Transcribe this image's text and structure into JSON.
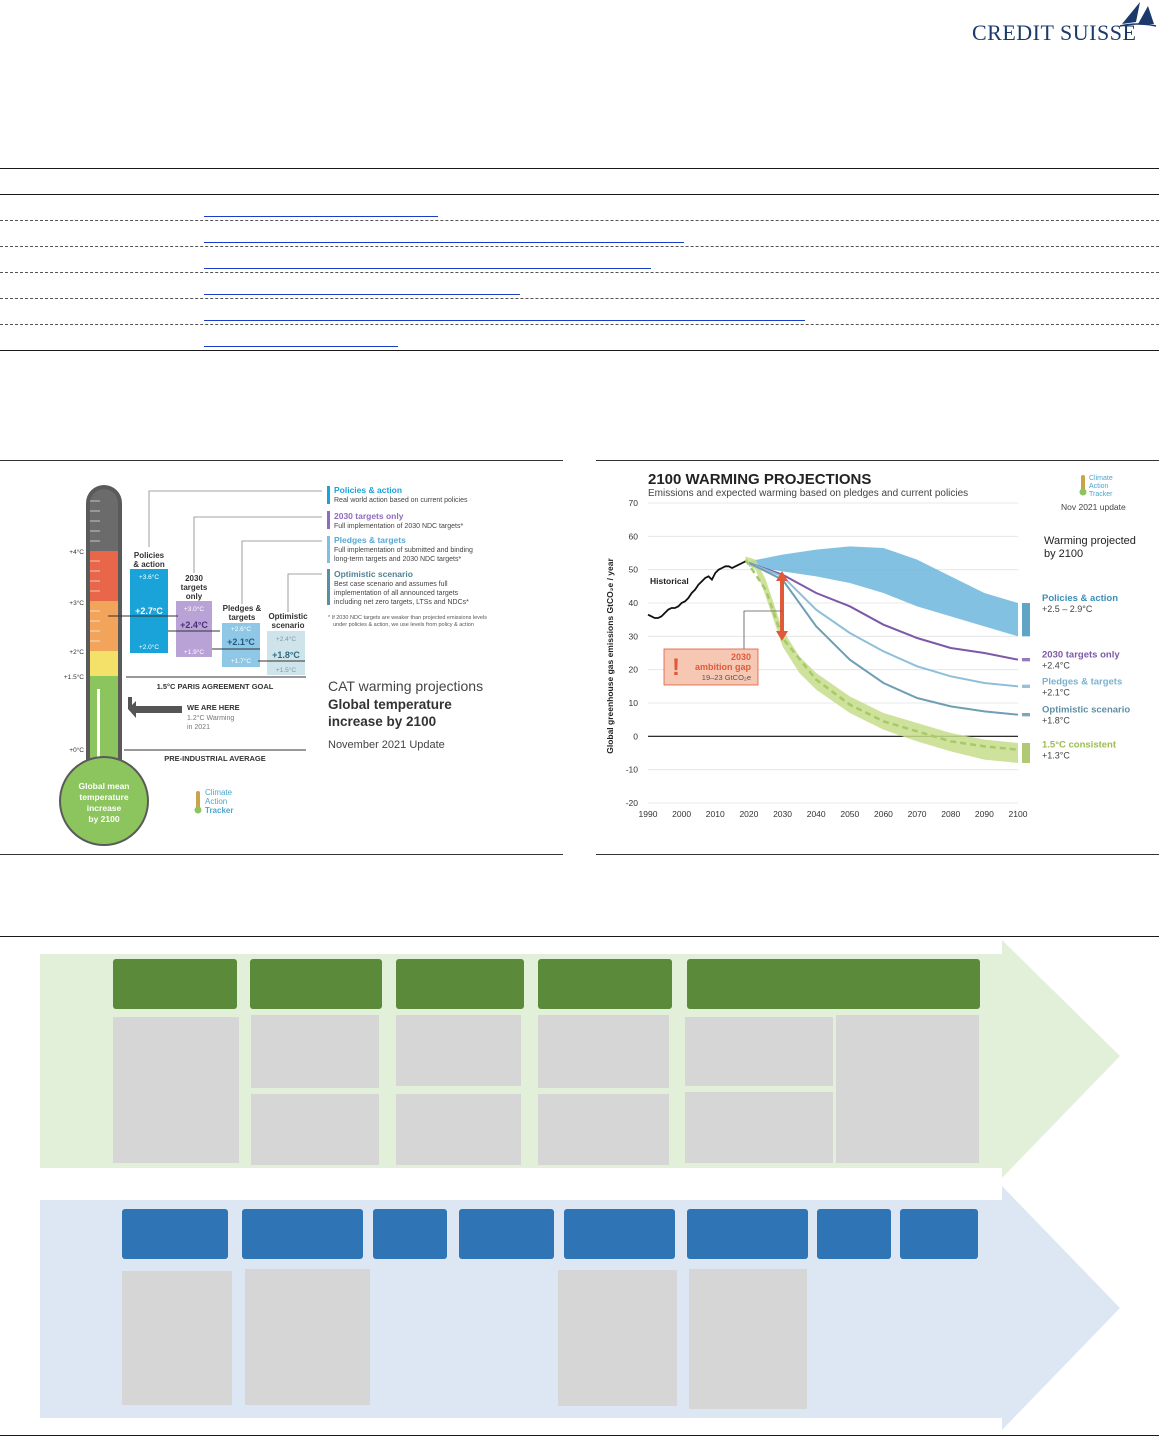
{
  "brand": {
    "name": "CREDIT SUISSE"
  },
  "thermometer": {
    "scale_labels": [
      "+4°C",
      "+3°C",
      "+2°C",
      "+1.5°C",
      "+0°C"
    ],
    "bulb_lines": [
      "Global mean",
      "temperature",
      "increase",
      "by 2100"
    ],
    "columns": [
      {
        "name_lines": [
          "Policies",
          "& action"
        ],
        "top": "+3.6°C",
        "mid": "+2.7°C",
        "bottom": "+2.0°C",
        "color": "#1aa3d9"
      },
      {
        "name_lines": [
          "2030",
          "targets",
          "only"
        ],
        "top": "+3.0°C",
        "mid": "+2.4°C",
        "bottom": "+1.9°C",
        "color": "#b9a2d6"
      },
      {
        "name_lines": [
          "Pledges &",
          "targets"
        ],
        "top": "+2.6°C",
        "mid": "+2.1°C",
        "bottom": "+1.7°C",
        "color": "#8fc7e6"
      },
      {
        "name_lines": [
          "Optimistic",
          "scenario"
        ],
        "top": "+2.4°C",
        "mid": "+1.8°C",
        "bottom": "+1.5°C",
        "color": "#cfe3ea"
      }
    ],
    "legend": [
      {
        "title": "Policies & action",
        "lines": [
          "Real world action based on current policies"
        ],
        "color": "#1aa3d9"
      },
      {
        "title": "2030 targets only",
        "lines": [
          "Full implementation of 2030 NDC targets*"
        ],
        "color": "#8e6bbf"
      },
      {
        "title": "Pledges & targets",
        "lines": [
          "Full implementation of submitted and binding",
          "long-term targets and 2030 NDC targets*"
        ],
        "color": "#7fbfe0"
      },
      {
        "title": "Optimistic scenario",
        "lines": [
          "Best case scenario and assumes full",
          "implementation of all announced targets",
          "including net zero targets, LTSs and NDCs*"
        ],
        "color": "#5a8fa3"
      }
    ],
    "footnote_lines": [
      "* If 2030 NDC targets are weaker than projected emissions levels",
      "under policies & action, we use levels from policy & action"
    ],
    "paris_goal": "1.5°C PARIS AGREEMENT GOAL",
    "we_are_here": "WE ARE HERE",
    "warming_lines": [
      "1.2°C Warming",
      "in 2021"
    ],
    "preindustrial": "PRE-INDUSTRIAL AVERAGE",
    "cat_title": "CAT warming projections",
    "cat_subtitle_lines": [
      "Global temperature",
      "increase by 2100"
    ],
    "cat_update": "November 2021 Update",
    "cat_logo_lines": [
      "Climate",
      "Action",
      "Tracker"
    ]
  },
  "chart_data": {
    "type": "line",
    "title": "2100 WARMING PROJECTIONS",
    "subtitle": "Emissions and expected warming based on pledges and current policies",
    "ylabel": "Global greenhouse gas emissions  GtCO₂e / year",
    "xlabel": "",
    "x_ticks": [
      1990,
      2000,
      2010,
      2020,
      2030,
      2040,
      2050,
      2060,
      2070,
      2080,
      2090,
      2100
    ],
    "y_ticks": [
      -20,
      -10,
      0,
      10,
      20,
      30,
      40,
      50,
      60,
      70
    ],
    "xlim": [
      1990,
      2100
    ],
    "ylim": [
      -20,
      70
    ],
    "historical_label": "Historical",
    "historical": {
      "x": [
        1990,
        1991,
        1992,
        1993,
        1994,
        1995,
        1996,
        1997,
        1998,
        1999,
        2000,
        2001,
        2002,
        2003,
        2004,
        2005,
        2006,
        2007,
        2008,
        2009,
        2010,
        2011,
        2012,
        2013,
        2014,
        2015,
        2016,
        2017,
        2018,
        2019
      ],
      "y": [
        36.5,
        36,
        35.5,
        35.5,
        36,
        37,
        38,
        38.5,
        38.5,
        39,
        40,
        40.5,
        41.5,
        43,
        44,
        45.5,
        46.5,
        47.5,
        48,
        47,
        49,
        50,
        50.5,
        51,
        51,
        50.5,
        51,
        51.5,
        52,
        52.5
      ]
    },
    "bands": [
      {
        "name": "Policies & action",
        "color": "#6cb6dc",
        "x": [
          2020,
          2030,
          2040,
          2050,
          2060,
          2070,
          2080,
          2090,
          2100
        ],
        "low": [
          51,
          49.5,
          48,
          46,
          43,
          39,
          36,
          33,
          30
        ],
        "high": [
          52.5,
          54.5,
          56,
          57,
          56.5,
          53,
          48,
          43,
          40
        ]
      },
      {
        "name": "1.5°C consistent",
        "color": "#c6dd8a",
        "x": [
          2019,
          2022,
          2025,
          2030,
          2035,
          2040,
          2050,
          2060,
          2070,
          2080,
          2090,
          2100
        ],
        "low": [
          52,
          50,
          42,
          27,
          19,
          14,
          7,
          2,
          -1.5,
          -4.5,
          -7,
          -8
        ],
        "high": [
          54,
          53,
          47,
          32,
          24,
          19,
          12,
          7,
          4,
          1,
          -1,
          -2
        ]
      }
    ],
    "series": [
      {
        "name": "2030 targets only",
        "color": "#7d58a8",
        "x": [
          2020,
          2030,
          2040,
          2050,
          2060,
          2070,
          2080,
          2090,
          2100
        ],
        "y": [
          52,
          48.5,
          43,
          39,
          33.5,
          29.5,
          26.5,
          25,
          23
        ]
      },
      {
        "name": "Pledges & targets",
        "color": "#8fbfd8",
        "x": [
          2020,
          2030,
          2040,
          2050,
          2060,
          2070,
          2080,
          2090,
          2100
        ],
        "y": [
          52,
          48,
          38,
          31,
          25.5,
          21,
          18,
          16,
          15
        ]
      },
      {
        "name": "Optimistic scenario",
        "color": "#6f9fb4",
        "x": [
          2020,
          2030,
          2040,
          2050,
          2060,
          2070,
          2080,
          2090,
          2100
        ],
        "y": [
          52,
          47,
          33,
          23,
          16,
          11.5,
          9,
          7.5,
          6.5
        ]
      },
      {
        "name": "1.5°C consistent",
        "color": "#a8c96a",
        "x": [
          2019,
          2025,
          2030,
          2040,
          2050,
          2060,
          2070,
          2080,
          2090,
          2100
        ],
        "y": [
          53,
          44,
          29.5,
          17,
          9.5,
          4.5,
          1.5,
          -1.5,
          -3,
          -4
        ]
      }
    ],
    "right_labels": [
      {
        "name": "Policies & action",
        "range": "+2.5 – 2.9°C",
        "color": "#3a8fb8"
      },
      {
        "name": "2030 targets only",
        "range": "+2.4°C",
        "color": "#7d58a8"
      },
      {
        "name": "Pledges & targets",
        "range": "+2.1°C",
        "color": "#7ab2d0"
      },
      {
        "name": "Optimistic scenario",
        "range": "+1.8°C",
        "color": "#5f8fa6"
      },
      {
        "name": "1.5°C consistent",
        "range": "+1.3°C",
        "color": "#9bbd4f"
      }
    ],
    "warming_title_lines": [
      "Warming projected",
      "by 2100"
    ],
    "gap_lines": [
      "2030",
      "ambition gap",
      "19–23  GtCO₂e"
    ],
    "logo_lines": [
      "Climate",
      "Action",
      "Tracker"
    ],
    "update": "Nov 2021 update"
  }
}
